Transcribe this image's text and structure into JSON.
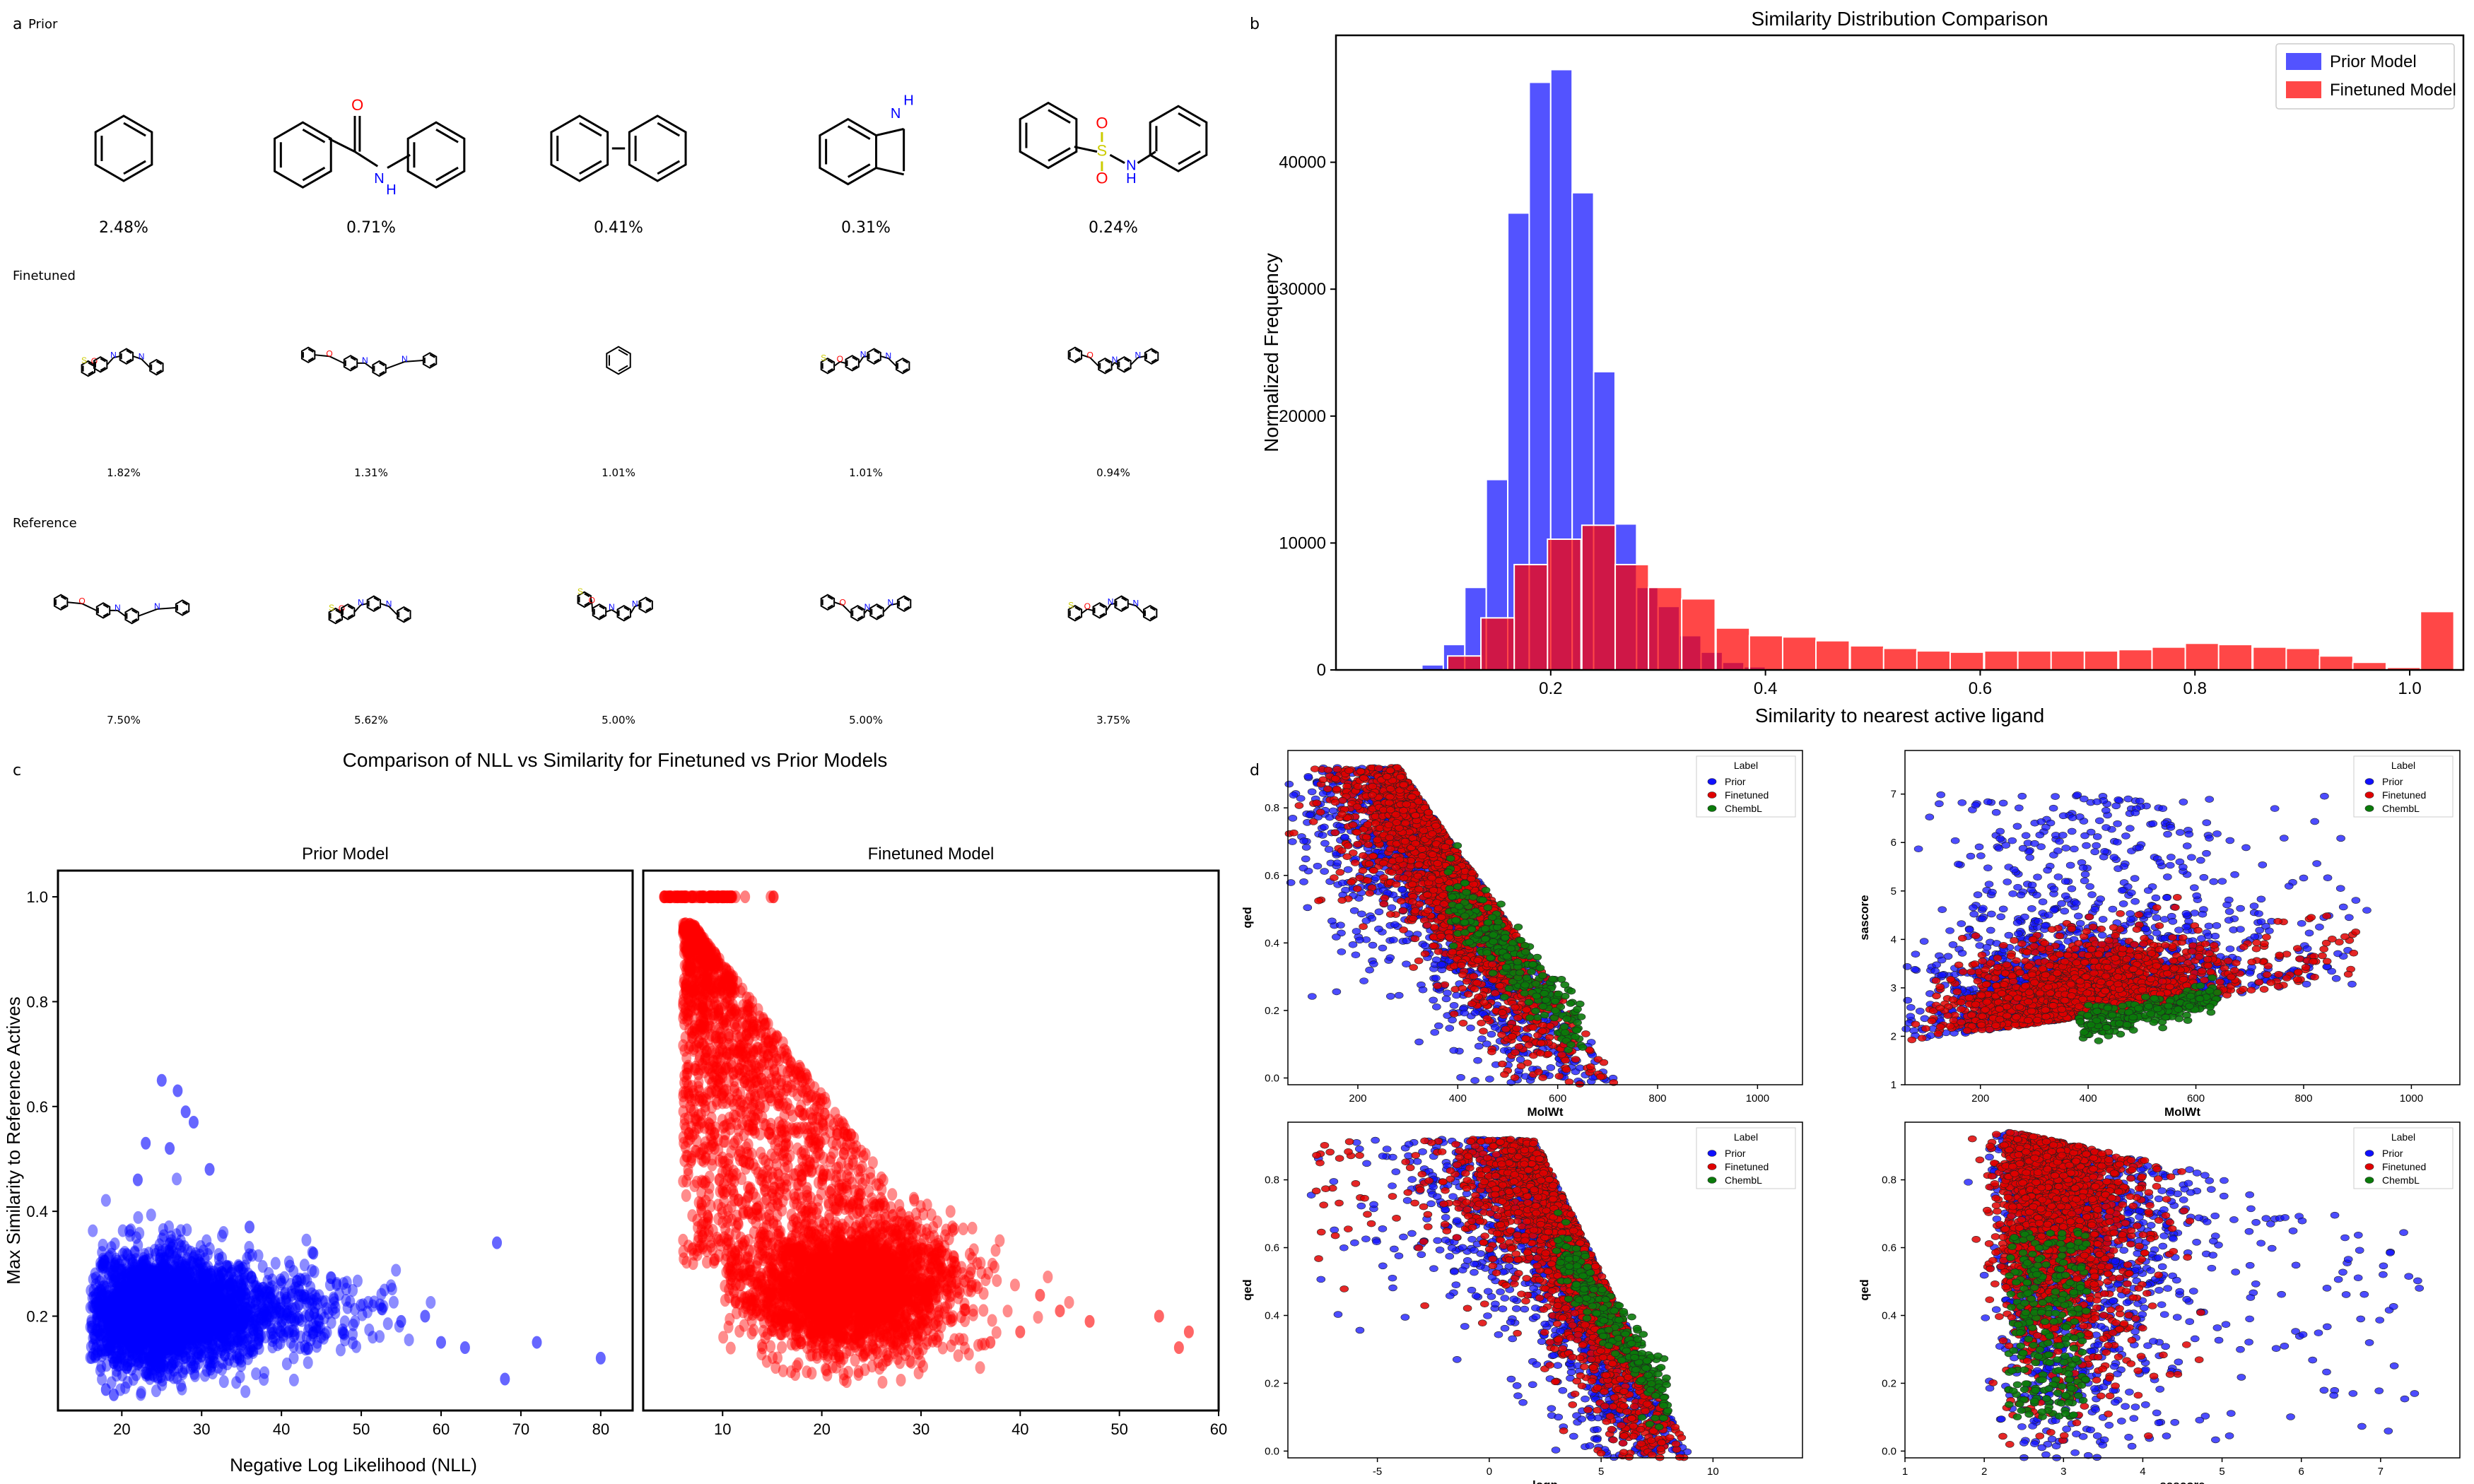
{
  "panel_a": {
    "letter": "a",
    "rows": [
      {
        "label": "Prior",
        "size": "big",
        "items": [
          {
            "mol": "benzene",
            "pct": "2.48%"
          },
          {
            "mol": "benzanilide",
            "pct": "0.71%"
          },
          {
            "mol": "biphenyl",
            "pct": "0.41%"
          },
          {
            "mol": "indole",
            "pct": "0.31%"
          },
          {
            "mol": "sulfonanilide",
            "pct": "0.24%"
          }
        ]
      },
      {
        "label": "Finetuned",
        "size": "small",
        "items": [
          {
            "mol": "ligand-a",
            "pct": "1.82%"
          },
          {
            "mol": "ligand-b",
            "pct": "1.31%"
          },
          {
            "mol": "benzene",
            "pct": "1.01%"
          },
          {
            "mol": "ligand-c",
            "pct": "1.01%"
          },
          {
            "mol": "ligand-d",
            "pct": "0.94%"
          }
        ]
      },
      {
        "label": "Reference",
        "size": "small",
        "items": [
          {
            "mol": "ligand-b",
            "pct": "7.50%"
          },
          {
            "mol": "ligand-a",
            "pct": "5.62%"
          },
          {
            "mol": "ligand-e",
            "pct": "5.00%"
          },
          {
            "mol": "ligand-d",
            "pct": "5.00%"
          },
          {
            "mol": "ligand-c",
            "pct": "3.75%"
          }
        ]
      }
    ]
  },
  "panel_b": {
    "letter": "b"
  },
  "panel_c": {
    "letter": "c",
    "suptitle": "Comparison of NLL vs Similarity for Finetuned vs Prior Models"
  },
  "panel_d": {
    "letter": "d"
  },
  "chart_data": [
    {
      "id": "hist",
      "type": "bar",
      "title": "Similarity Distribution Comparison",
      "xlabel": "Similarity to nearest active ligand",
      "ylabel": "Normalized Frequency",
      "xlim": [
        0.0,
        1.05
      ],
      "ylim": [
        0,
        50000
      ],
      "xticks": [
        0.2,
        0.4,
        0.6,
        0.8,
        1.0
      ],
      "yticks": [
        0,
        10000,
        20000,
        30000,
        40000
      ],
      "legend_position": "top-right",
      "grid": false,
      "series": [
        {
          "name": "Prior Model",
          "color": "#1010ff",
          "bin_width": 0.02,
          "bins": [
            {
              "x": 0.06,
              "y": 100
            },
            {
              "x": 0.08,
              "y": 400
            },
            {
              "x": 0.1,
              "y": 2000
            },
            {
              "x": 0.12,
              "y": 6500
            },
            {
              "x": 0.14,
              "y": 15000
            },
            {
              "x": 0.16,
              "y": 36000
            },
            {
              "x": 0.18,
              "y": 46300
            },
            {
              "x": 0.2,
              "y": 47300
            },
            {
              "x": 0.22,
              "y": 37600
            },
            {
              "x": 0.24,
              "y": 23500
            },
            {
              "x": 0.26,
              "y": 11500
            },
            {
              "x": 0.28,
              "y": 6500
            },
            {
              "x": 0.3,
              "y": 5000
            },
            {
              "x": 0.32,
              "y": 2700
            },
            {
              "x": 0.34,
              "y": 1400
            },
            {
              "x": 0.36,
              "y": 600
            },
            {
              "x": 0.38,
              "y": 250
            },
            {
              "x": 0.4,
              "y": 100
            }
          ]
        },
        {
          "name": "Finetuned Model",
          "color": "#ff0000",
          "bin_width": 0.0312,
          "bins": [
            {
              "x": 0.104,
              "y": 1100
            },
            {
              "x": 0.135,
              "y": 4100
            },
            {
              "x": 0.166,
              "y": 8300
            },
            {
              "x": 0.197,
              "y": 10300
            },
            {
              "x": 0.229,
              "y": 11400
            },
            {
              "x": 0.26,
              "y": 8300
            },
            {
              "x": 0.291,
              "y": 6500
            },
            {
              "x": 0.322,
              "y": 5600
            },
            {
              "x": 0.354,
              "y": 3300
            },
            {
              "x": 0.385,
              "y": 2700
            },
            {
              "x": 0.416,
              "y": 2600
            },
            {
              "x": 0.447,
              "y": 2300
            },
            {
              "x": 0.479,
              "y": 1900
            },
            {
              "x": 0.51,
              "y": 1700
            },
            {
              "x": 0.541,
              "y": 1500
            },
            {
              "x": 0.572,
              "y": 1400
            },
            {
              "x": 0.604,
              "y": 1500
            },
            {
              "x": 0.635,
              "y": 1500
            },
            {
              "x": 0.666,
              "y": 1500
            },
            {
              "x": 0.697,
              "y": 1500
            },
            {
              "x": 0.729,
              "y": 1600
            },
            {
              "x": 0.76,
              "y": 1800
            },
            {
              "x": 0.791,
              "y": 2100
            },
            {
              "x": 0.822,
              "y": 2000
            },
            {
              "x": 0.854,
              "y": 1800
            },
            {
              "x": 0.885,
              "y": 1700
            },
            {
              "x": 0.916,
              "y": 1100
            },
            {
              "x": 0.947,
              "y": 600
            },
            {
              "x": 0.979,
              "y": 200
            },
            {
              "x": 1.01,
              "y": 4600
            }
          ]
        }
      ]
    },
    {
      "id": "nll_prior",
      "type": "scatter",
      "title": "Prior Model",
      "xlabel": "Negative Log Likelihood (NLL)",
      "ylabel": "Max Similarity to Reference Actives",
      "xlim": [
        12,
        84
      ],
      "ylim": [
        0.02,
        1.05
      ],
      "xticks": [
        20,
        30,
        40,
        50,
        60,
        70,
        80
      ],
      "yticks": [
        0.2,
        0.4,
        0.6,
        0.8,
        1.0
      ],
      "color": "#0000ff",
      "outliers": [
        {
          "x": 25,
          "y": 0.65
        },
        {
          "x": 27,
          "y": 0.63
        },
        {
          "x": 28,
          "y": 0.59
        },
        {
          "x": 29,
          "y": 0.57
        },
        {
          "x": 23,
          "y": 0.53
        },
        {
          "x": 26,
          "y": 0.52
        },
        {
          "x": 31,
          "y": 0.48
        },
        {
          "x": 22,
          "y": 0.46
        },
        {
          "x": 67,
          "y": 0.34
        },
        {
          "x": 80,
          "y": 0.12
        },
        {
          "x": 68,
          "y": 0.08
        },
        {
          "x": 72,
          "y": 0.15
        },
        {
          "x": 63,
          "y": 0.14
        },
        {
          "x": 58,
          "y": 0.2
        },
        {
          "x": 60,
          "y": 0.15
        },
        {
          "x": 55,
          "y": 0.19
        },
        {
          "x": 18,
          "y": 0.06
        },
        {
          "x": 19,
          "y": 0.05
        },
        {
          "x": 36,
          "y": 0.37
        },
        {
          "x": 44,
          "y": 0.32
        }
      ]
    },
    {
      "id": "nll_finetuned",
      "type": "scatter",
      "title": "Finetuned Model",
      "xlim": [
        2,
        60
      ],
      "ylim": [
        0.02,
        1.05
      ],
      "xticks": [
        10,
        20,
        30,
        40,
        50,
        60
      ],
      "color": "#ff0000",
      "outliers": [
        {
          "x": 57,
          "y": 0.17
        },
        {
          "x": 56,
          "y": 0.14
        },
        {
          "x": 54,
          "y": 0.2
        },
        {
          "x": 47,
          "y": 0.19
        },
        {
          "x": 44,
          "y": 0.21
        },
        {
          "x": 40,
          "y": 0.17
        },
        {
          "x": 37,
          "y": 0.15
        },
        {
          "x": 42,
          "y": 0.24
        }
      ]
    },
    {
      "id": "d_molwt_qed",
      "type": "scatter",
      "xlabel": "MolWt",
      "ylabel": "qed",
      "xlim": [
        60,
        1090
      ],
      "ylim": [
        -0.02,
        0.97
      ],
      "xticks": [
        200,
        400,
        600,
        800,
        1000
      ],
      "yticks": [
        0.0,
        0.2,
        0.4,
        0.6,
        0.8
      ],
      "legend": {
        "title": "Label",
        "entries": [
          {
            "name": "Prior",
            "color": "#1010ff"
          },
          {
            "name": "Finetuned",
            "color": "#e00000"
          },
          {
            "name": "ChembL",
            "color": "#0a7a0a"
          }
        ]
      }
    },
    {
      "id": "d_molwt_sascore",
      "type": "scatter",
      "xlabel": "MolWt",
      "ylabel": "sascore",
      "xlim": [
        60,
        1090
      ],
      "ylim": [
        1,
        7.9
      ],
      "xticks": [
        200,
        400,
        600,
        800,
        1000
      ],
      "yticks": [
        1,
        2,
        3,
        4,
        5,
        6,
        7
      ],
      "legend": {
        "title": "Label",
        "entries": [
          {
            "name": "Prior",
            "color": "#1010ff"
          },
          {
            "name": "Finetuned",
            "color": "#e00000"
          },
          {
            "name": "ChembL",
            "color": "#0a7a0a"
          }
        ]
      }
    },
    {
      "id": "d_logp_qed",
      "type": "scatter",
      "xlabel": "logp",
      "ylabel": "qed",
      "xlim": [
        -9,
        14
      ],
      "ylim": [
        -0.02,
        0.97
      ],
      "xticks": [
        -5,
        0,
        5,
        10
      ],
      "yticks": [
        0.0,
        0.2,
        0.4,
        0.6,
        0.8
      ],
      "legend": {
        "title": "Label",
        "entries": [
          {
            "name": "Prior",
            "color": "#1010ff"
          },
          {
            "name": "Finetuned",
            "color": "#e00000"
          },
          {
            "name": "ChembL",
            "color": "#0a7a0a"
          }
        ]
      }
    },
    {
      "id": "d_sascore_qed",
      "type": "scatter",
      "xlabel": "sascore",
      "ylabel": "qed",
      "xlim": [
        1,
        8
      ],
      "ylim": [
        -0.02,
        0.97
      ],
      "xticks": [
        1,
        2,
        3,
        4,
        5,
        6,
        7
      ],
      "yticks": [
        0.0,
        0.2,
        0.4,
        0.6,
        0.8
      ],
      "legend": {
        "title": "Label",
        "entries": [
          {
            "name": "Prior",
            "color": "#1010ff"
          },
          {
            "name": "Finetuned",
            "color": "#e00000"
          },
          {
            "name": "ChembL",
            "color": "#0a7a0a"
          }
        ]
      }
    }
  ]
}
